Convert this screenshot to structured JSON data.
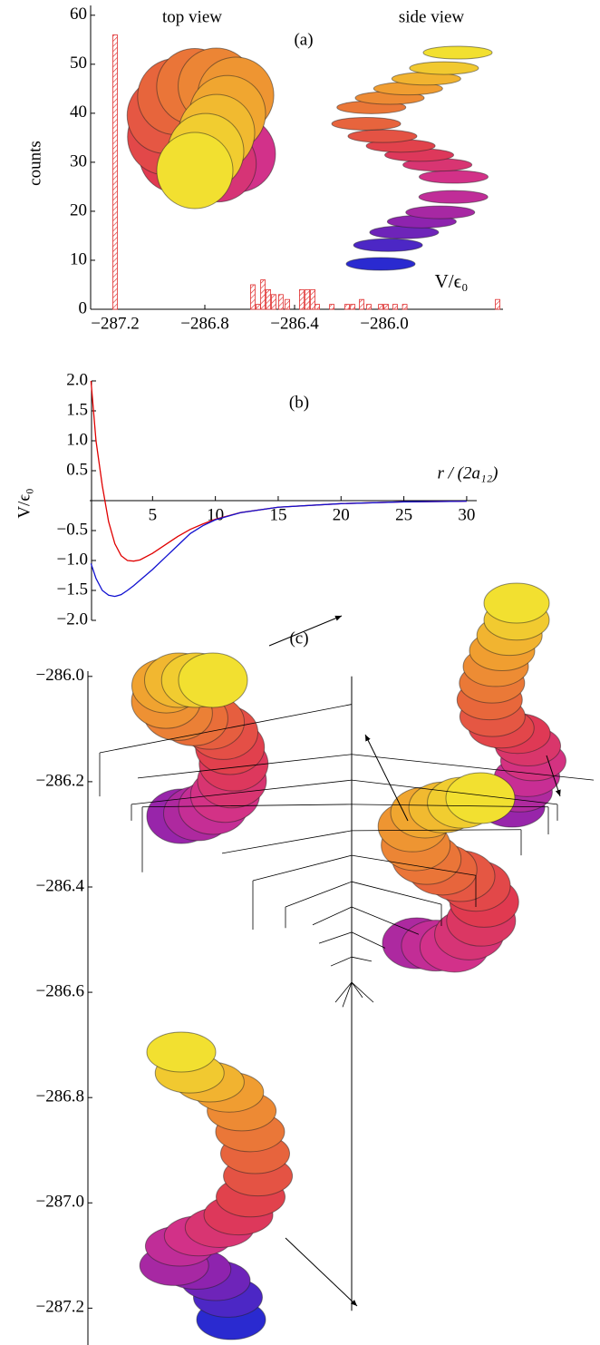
{
  "chart_data": [
    {
      "type": "bar",
      "title": "(a)",
      "annotations": [
        "top view",
        "side view"
      ],
      "ylabel": "counts",
      "xlabel": "V/ϵ₀",
      "x": [
        -287.2,
        -286.586,
        -286.562,
        -286.541,
        -286.517,
        -286.493,
        -286.461,
        -286.432,
        -286.368,
        -286.343,
        -286.319,
        -286.299,
        -286.234,
        -286.166,
        -286.141,
        -286.101,
        -286.069,
        -286.016,
        -285.992,
        -285.952,
        -285.909,
        -285.495
      ],
      "values": [
        56,
        5,
        1,
        6,
        4,
        3,
        3,
        2,
        4,
        4,
        4,
        1,
        1,
        1,
        1,
        2,
        1,
        1,
        1,
        1,
        1,
        2
      ],
      "color": "#e03030",
      "hatch": true,
      "xlim": [
        -287.309,
        -285.471
      ],
      "ylim": [
        0,
        62
      ],
      "xticks": [
        {
          "value": -287.2,
          "label": "−287.2"
        },
        {
          "value": -286.8,
          "label": "−286.8"
        },
        {
          "value": -286.4,
          "label": "−286.4"
        },
        {
          "value": -286.0,
          "label": "−286.0"
        }
      ],
      "yticks": [
        0,
        10,
        20,
        30,
        40,
        50,
        60
      ]
    },
    {
      "type": "line",
      "title": "(b)",
      "xlabel": "r / (2a₁₂)",
      "ylabel": "V/ϵ₀",
      "x": [
        0.1,
        0.5,
        1,
        1.5,
        2,
        2.5,
        3,
        3.5,
        4,
        5,
        6,
        7,
        8,
        9,
        10,
        12,
        15,
        20,
        25,
        30
      ],
      "series": [
        {
          "color": "#e00000",
          "values": [
            2.0,
            1.0,
            0.25,
            -0.35,
            -0.72,
            -0.92,
            -1.0,
            -1.01,
            -0.99,
            -0.88,
            -0.74,
            -0.6,
            -0.48,
            -0.39,
            -0.31,
            -0.2,
            -0.11,
            -0.05,
            -0.02,
            -0.01
          ]
        },
        {
          "color": "#1010d0",
          "values": [
            -1.05,
            -1.3,
            -1.5,
            -1.58,
            -1.6,
            -1.57,
            -1.5,
            -1.42,
            -1.33,
            -1.15,
            -0.95,
            -0.75,
            -0.55,
            -0.42,
            -0.32,
            -0.2,
            -0.11,
            -0.05,
            -0.02,
            -0.01
          ]
        }
      ],
      "xlim": [
        0,
        30.8
      ],
      "ylim": [
        -2,
        2
      ],
      "xticks": [
        5,
        10,
        15,
        20,
        25,
        30
      ],
      "yticks": [
        {
          "value": 2,
          "label": "2.0"
        },
        {
          "value": 1.5,
          "label": "1.5"
        },
        {
          "value": 1,
          "label": "1.0"
        },
        0.5,
        {
          "value": -0.5,
          "label": "−0.5"
        },
        {
          "value": -1,
          "label": "−1.0"
        },
        {
          "value": -1.5,
          "label": "−1.5"
        },
        {
          "value": -2,
          "label": "−2.0"
        }
      ]
    },
    {
      "type": "tree",
      "title": "(c)",
      "ylim": [
        -287.27,
        -285.99
      ],
      "yticks": [
        {
          "value": -286.0,
          "label": "−286.0"
        },
        {
          "value": -286.2,
          "label": "−286.2"
        },
        {
          "value": -286.4,
          "label": "−286.4"
        },
        {
          "value": -286.6,
          "label": "−286.6"
        },
        {
          "value": -286.8,
          "label": "−286.8"
        },
        {
          "value": -287.0,
          "label": "−287.0"
        },
        {
          "value": -287.2,
          "label": "−287.2"
        }
      ],
      "trunk": [
        -286.0,
        -287.205
      ],
      "branches": [
        {
          "node": -286.053,
          "end": -286.145,
          "drop": -286.228
        },
        {
          "node": -286.148,
          "end": -286.193,
          "drop": null
        },
        {
          "node": -286.148,
          "end": -286.197,
          "drop": null
        },
        {
          "node": -286.197,
          "end": -286.243,
          "drop": -286.274
        },
        {
          "node": -286.197,
          "end": -286.243,
          "drop": -286.274
        },
        {
          "node": -286.243,
          "end": -286.248,
          "drop": -286.372
        },
        {
          "node": -286.243,
          "end": -286.248,
          "drop": -286.3
        },
        {
          "node": -286.293,
          "end": -286.336,
          "drop": null
        },
        {
          "node": -286.293,
          "end": -286.291,
          "drop": -286.34
        },
        {
          "node": -286.34,
          "end": -286.388,
          "drop": -286.481
        },
        {
          "node": -286.34,
          "end": -286.378,
          "drop": -286.438
        },
        {
          "node": -286.39,
          "end": -286.438,
          "drop": -286.478
        },
        {
          "node": -286.39,
          "end": -286.433,
          "drop": -286.474
        },
        {
          "node": -286.438,
          "end": -286.472,
          "drop": null
        },
        {
          "node": -286.438,
          "end": -286.49,
          "drop": null
        },
        {
          "node": -286.486,
          "end": -286.507,
          "drop": null
        },
        {
          "node": -286.486,
          "end": -286.516,
          "drop": null
        },
        {
          "node": -286.533,
          "end": -286.55,
          "drop": null
        },
        {
          "node": -286.533,
          "end": -286.541,
          "drop": null
        },
        {
          "node": -286.581,
          "end": -286.619,
          "drop": null
        },
        {
          "node": -286.581,
          "end": -286.628,
          "drop": null
        },
        {
          "node": -286.581,
          "end": -286.61,
          "drop": null
        },
        {
          "node": -286.581,
          "end": -286.619,
          "drop": null
        }
      ]
    }
  ]
}
